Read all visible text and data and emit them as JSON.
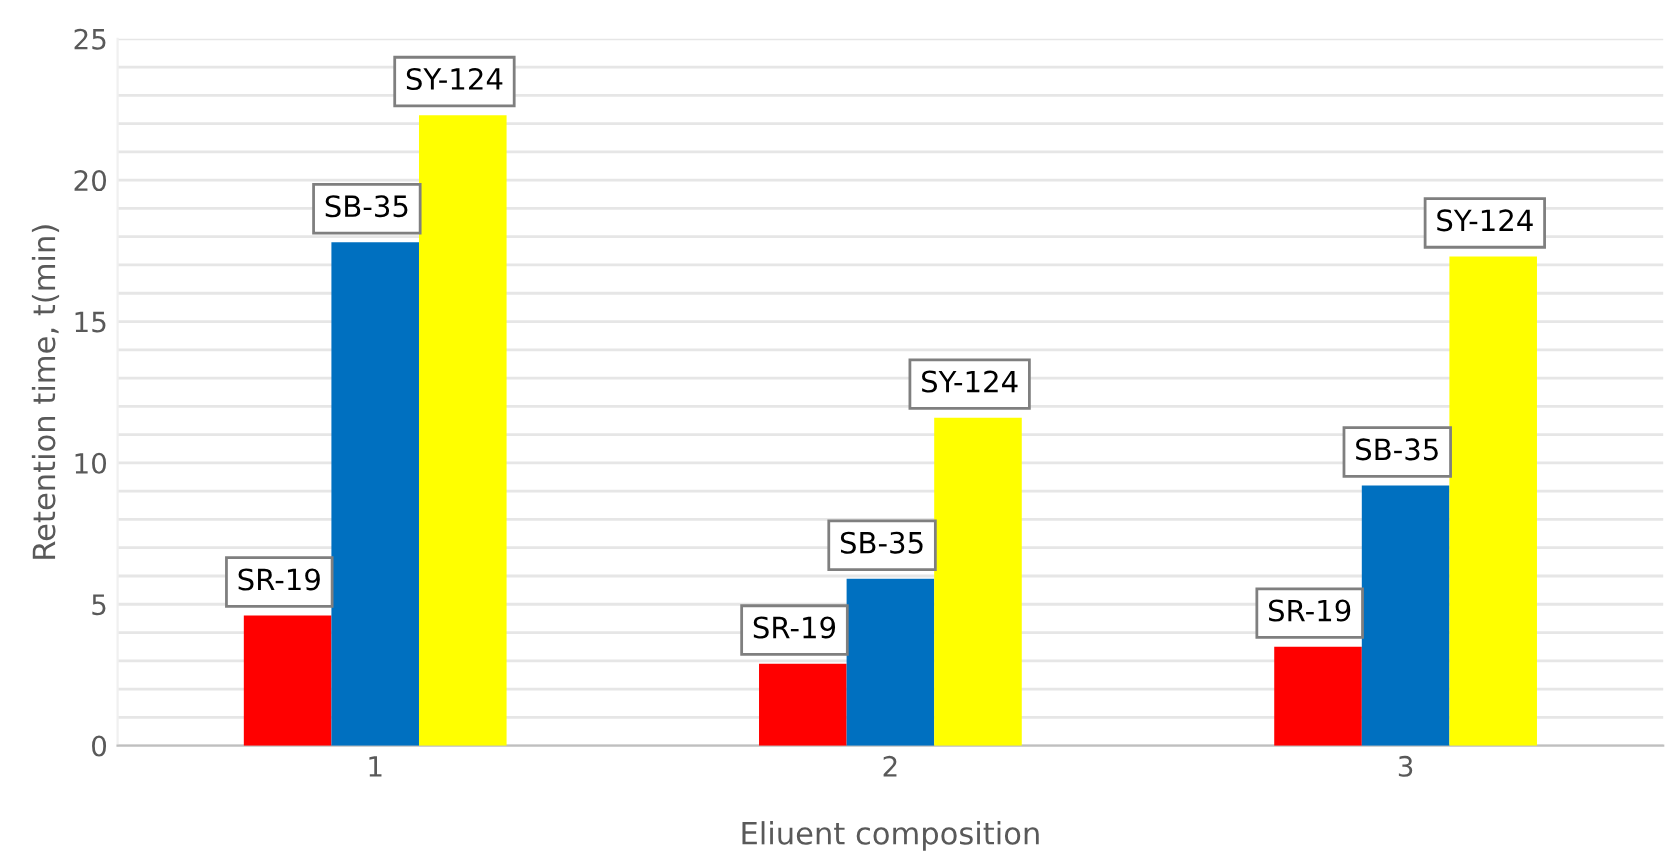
{
  "chart_data": {
    "type": "bar",
    "xlabel": "Eliuent composition",
    "ylabel": "Retention time, t(min)",
    "categories": [
      "1",
      "2",
      "3"
    ],
    "series": [
      {
        "name": "SR-19",
        "color": "#ff0000",
        "values": [
          4.6,
          2.9,
          3.5
        ]
      },
      {
        "name": "SB-35",
        "color": "#0070c0",
        "values": [
          17.8,
          5.9,
          9.2
        ]
      },
      {
        "name": "SY-124",
        "color": "#ffff00",
        "values": [
          22.3,
          11.6,
          17.3
        ]
      }
    ],
    "ylim": [
      0,
      25
    ],
    "yticks": [
      0,
      {
        "value": 1,
        "label": null
      },
      {
        "value": 2,
        "label": null
      },
      {
        "value": 3,
        "label": null
      },
      {
        "value": 4,
        "label": null
      },
      5,
      {
        "value": 6,
        "label": null
      },
      {
        "value": 7,
        "label": null
      },
      {
        "value": 8,
        "label": null
      },
      {
        "value": 9,
        "label": null
      },
      10,
      {
        "value": 11,
        "label": null
      },
      {
        "value": 12,
        "label": null
      },
      {
        "value": 13,
        "label": null
      },
      {
        "value": 14,
        "label": null
      },
      15,
      {
        "value": 16,
        "label": null
      },
      {
        "value": 17,
        "label": null
      },
      {
        "value": 18,
        "label": null
      },
      {
        "value": 19,
        "label": null
      },
      20,
      {
        "value": 21,
        "label": null
      },
      {
        "value": 22,
        "label": null
      },
      {
        "value": 23,
        "label": null
      },
      {
        "value": 24,
        "label": null
      },
      25
    ],
    "grid": "y"
  }
}
